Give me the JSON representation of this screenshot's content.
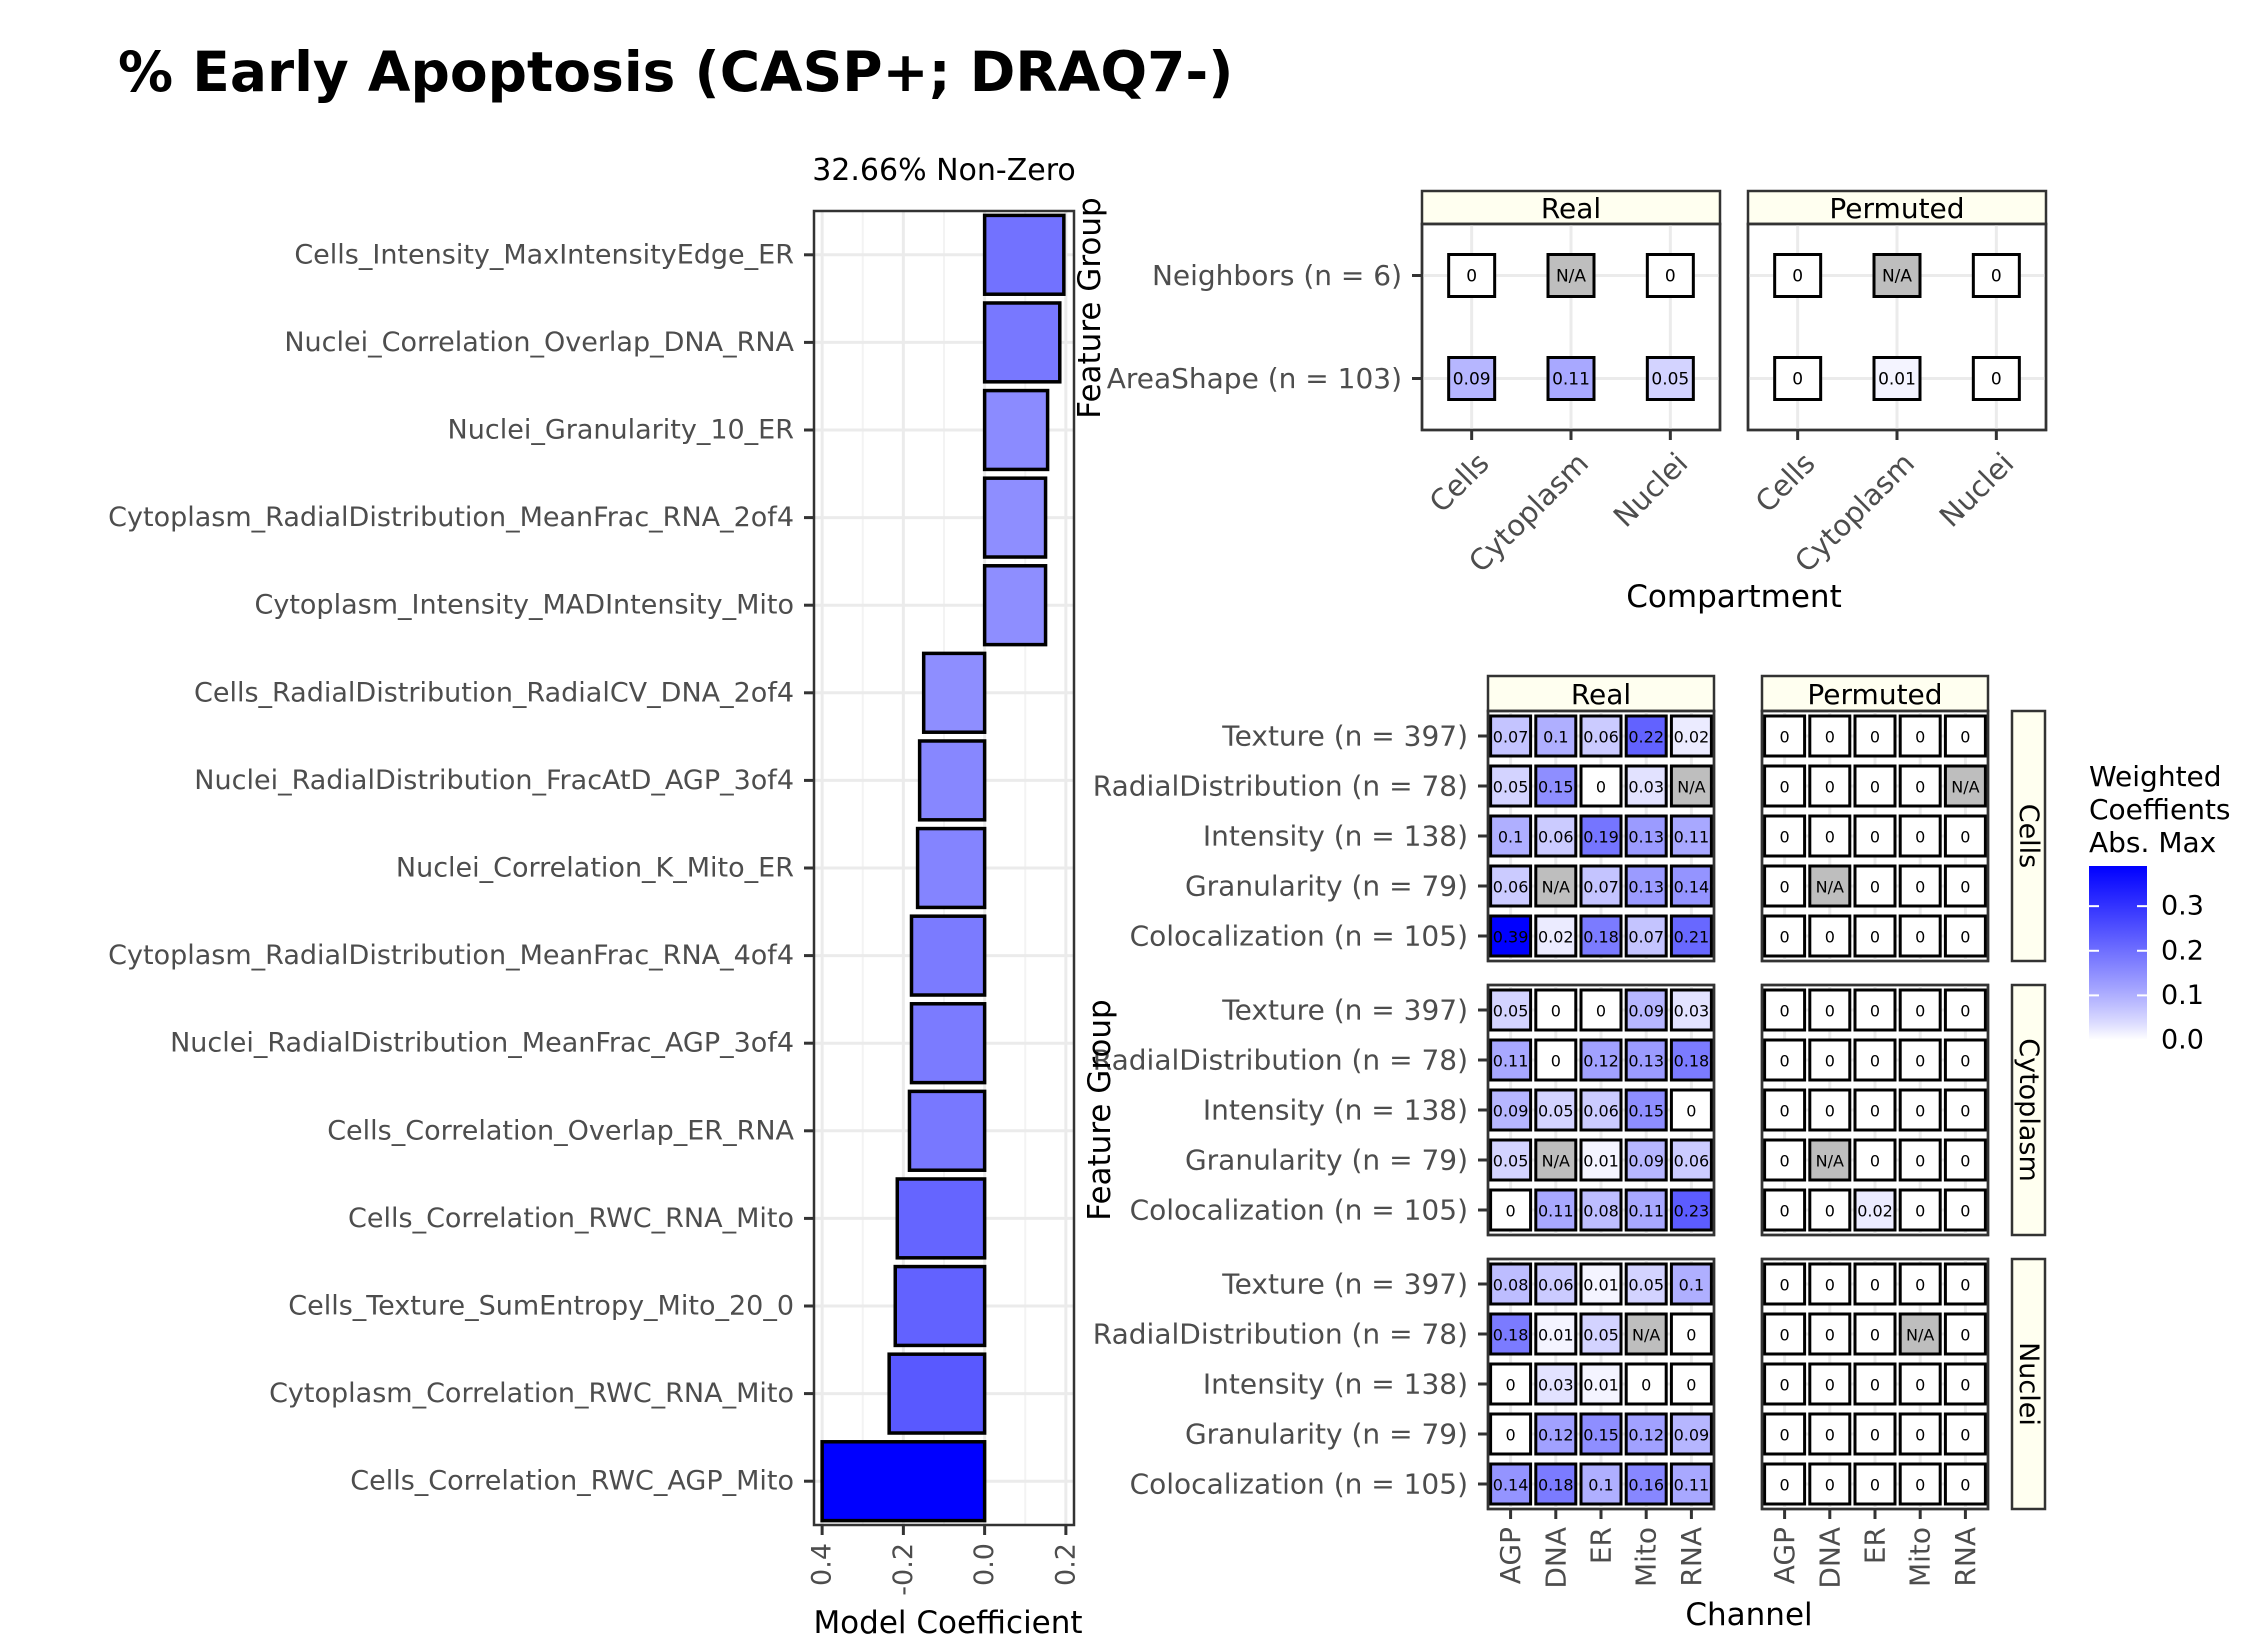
{
  "title": "% Early Apoptosis (CASP+; DRAQ7-)",
  "chart_data": [
    {
      "type": "bar",
      "orientation": "horizontal",
      "subtitle": "32.66% Non-Zero",
      "xlabel": "Model Coefficient",
      "xlim": [
        -0.42,
        0.22
      ],
      "xticks": [
        "-0.4",
        "-0.2",
        "0.0",
        "0.2"
      ],
      "categories": [
        "Cells_Intensity_MaxIntensityEdge_ER",
        "Nuclei_Correlation_Overlap_DNA_RNA",
        "Nuclei_Granularity_10_ER",
        "Cytoplasm_RadialDistribution_MeanFrac_RNA_2of4",
        "Cytoplasm_Intensity_MADIntensity_Mito",
        "Cells_RadialDistribution_RadialCV_DNA_2of4",
        "Nuclei_RadialDistribution_FracAtD_AGP_3of4",
        "Nuclei_Correlation_K_Mito_ER",
        "Cytoplasm_RadialDistribution_MeanFrac_RNA_4of4",
        "Nuclei_RadialDistribution_MeanFrac_AGP_3of4",
        "Cells_Correlation_Overlap_ER_RNA",
        "Cells_Correlation_RWC_RNA_Mito",
        "Cells_Texture_SumEntropy_Mito_20_0",
        "Cytoplasm_Correlation_RWC_RNA_Mito",
        "Cells_Correlation_RWC_AGP_Mito"
      ],
      "values": [
        0.195,
        0.185,
        0.155,
        0.15,
        0.15,
        -0.15,
        -0.16,
        -0.165,
        -0.18,
        -0.18,
        -0.185,
        -0.215,
        -0.22,
        -0.235,
        -0.4
      ],
      "grid": true
    },
    {
      "type": "heatmap",
      "ylabel": "Feature Group",
      "xlabel": "Compartment",
      "panels": [
        "Real",
        "Permuted"
      ],
      "columns": [
        "Cells",
        "Cytoplasm",
        "Nuclei"
      ],
      "rows": [
        "Neighbors (n = 6)",
        "AreaShape (n = 103)"
      ],
      "values": {
        "Real": [
          [
            "0",
            "N/A",
            "0"
          ],
          [
            "0.09",
            "0.11",
            "0.05"
          ]
        ],
        "Permuted": [
          [
            "0",
            "N/A",
            "0"
          ],
          [
            "0",
            "0.01",
            "0"
          ]
        ]
      }
    },
    {
      "type": "heatmap",
      "ylabel": "Feature Group",
      "xlabel": "Channel",
      "panels": [
        "Real",
        "Permuted"
      ],
      "facets": [
        "Cells",
        "Cytoplasm",
        "Nuclei"
      ],
      "columns": [
        "AGP",
        "DNA",
        "ER",
        "Mito",
        "RNA"
      ],
      "rows": [
        "Texture (n = 397)",
        "RadialDistribution (n = 78)",
        "Intensity (n = 138)",
        "Granularity (n = 79)",
        "Colocalization (n = 105)"
      ],
      "values": {
        "Cells": {
          "Real": [
            [
              "0.07",
              "0.1",
              "0.06",
              "0.22",
              "0.02"
            ],
            [
              "0.05",
              "0.15",
              "0",
              "0.03",
              "N/A"
            ],
            [
              "0.1",
              "0.06",
              "0.19",
              "0.13",
              "0.11"
            ],
            [
              "0.06",
              "N/A",
              "0.07",
              "0.13",
              "0.14"
            ],
            [
              "0.39",
              "0.02",
              "0.18",
              "0.07",
              "0.21"
            ]
          ],
          "Permuted": [
            [
              "0",
              "0",
              "0",
              "0",
              "0"
            ],
            [
              "0",
              "0",
              "0",
              "0",
              "N/A"
            ],
            [
              "0",
              "0",
              "0",
              "0",
              "0"
            ],
            [
              "0",
              "N/A",
              "0",
              "0",
              "0"
            ],
            [
              "0",
              "0",
              "0",
              "0",
              "0"
            ]
          ]
        },
        "Cytoplasm": {
          "Real": [
            [
              "0.05",
              "0",
              "0",
              "0.09",
              "0.03"
            ],
            [
              "0.11",
              "0",
              "0.12",
              "0.13",
              "0.18"
            ],
            [
              "0.09",
              "0.05",
              "0.06",
              "0.15",
              "0"
            ],
            [
              "0.05",
              "N/A",
              "0.01",
              "0.09",
              "0.06"
            ],
            [
              "0",
              "0.11",
              "0.08",
              "0.11",
              "0.23"
            ]
          ],
          "Permuted": [
            [
              "0",
              "0",
              "0",
              "0",
              "0"
            ],
            [
              "0",
              "0",
              "0",
              "0",
              "0"
            ],
            [
              "0",
              "0",
              "0",
              "0",
              "0"
            ],
            [
              "0",
              "N/A",
              "0",
              "0",
              "0"
            ],
            [
              "0",
              "0",
              "0.02",
              "0",
              "0"
            ]
          ]
        },
        "Nuclei": {
          "Real": [
            [
              "0.08",
              "0.06",
              "0.01",
              "0.05",
              "0.1"
            ],
            [
              "0.18",
              "0.01",
              "0.05",
              "N/A",
              "0"
            ],
            [
              "0",
              "0.03",
              "0.01",
              "0",
              "0"
            ],
            [
              "0",
              "0.12",
              "0.15",
              "0.12",
              "0.09"
            ],
            [
              "0.14",
              "0.18",
              "0.1",
              "0.16",
              "0.11"
            ]
          ],
          "Permuted": [
            [
              "0",
              "0",
              "0",
              "0",
              "0"
            ],
            [
              "0",
              "0",
              "0",
              "N/A",
              "0"
            ],
            [
              "0",
              "0",
              "0",
              "0",
              "0"
            ],
            [
              "0",
              "0",
              "0",
              "0",
              "0"
            ],
            [
              "0",
              "0",
              "0",
              "0",
              "0"
            ]
          ]
        }
      }
    }
  ],
  "legend": {
    "title": [
      "Weighted",
      "Coeffients",
      "Abs. Max"
    ],
    "ticks": [
      "0.0",
      "0.1",
      "0.2",
      "0.3"
    ],
    "max": 0.39,
    "color_low": "#ffffff",
    "color_high": "#0000ff",
    "na_color": "#bebebe"
  }
}
